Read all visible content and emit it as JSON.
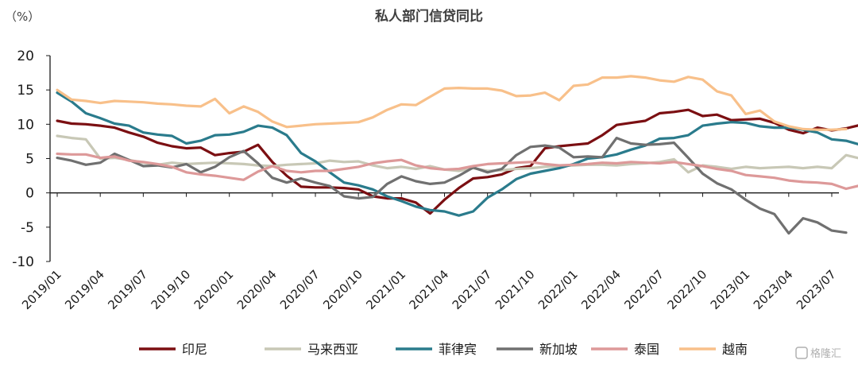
{
  "chart_data": {
    "type": "line",
    "title": "私人部门信贷同比",
    "unit_label": "（%）",
    "ylim": [
      -10,
      20
    ],
    "yticks": [
      20,
      15,
      10,
      5,
      0,
      -5,
      -10
    ],
    "x_start": "2019/01",
    "x_tick_labels": [
      "2019/01",
      "2019/04",
      "2019/07",
      "2019/10",
      "2020/01",
      "2020/04",
      "2020/07",
      "2020/10",
      "2021/01",
      "2021/04",
      "2021/07",
      "2021/10",
      "2022/01",
      "2022/04",
      "2022/07",
      "2022/10",
      "2023/01",
      "2023/04",
      "2023/07"
    ],
    "legend_position": "bottom",
    "grid": false,
    "series": [
      {
        "name": "印尼",
        "color": "#7b0f12",
        "values": [
          10.5,
          10.1,
          10.0,
          9.8,
          9.5,
          8.8,
          8.2,
          7.3,
          6.8,
          6.5,
          6.6,
          5.5,
          5.8,
          6.0,
          7.0,
          4.5,
          2.5,
          0.9,
          0.8,
          0.8,
          0.7,
          0.5,
          -0.5,
          -0.8,
          -0.8,
          -1.4,
          -3.0,
          -1.0,
          0.7,
          2.1,
          2.3,
          2.7,
          3.6,
          3.9,
          6.5,
          6.8,
          7.0,
          7.2,
          8.4,
          9.9,
          10.2,
          10.5,
          11.6,
          11.8,
          12.1,
          11.2,
          11.4,
          10.6,
          10.7,
          10.8,
          10.2,
          9.2,
          8.7,
          9.5,
          9.1,
          9.4,
          9.9
        ]
      },
      {
        "name": "马来西亚",
        "color": "#c8c8b6",
        "values": [
          8.3,
          8.0,
          7.8,
          5.0,
          5.1,
          4.8,
          4.4,
          4.1,
          4.4,
          4.2,
          4.3,
          4.4,
          4.3,
          4.2,
          4.0,
          3.9,
          4.1,
          4.2,
          4.3,
          4.7,
          4.5,
          4.6,
          4.0,
          3.6,
          3.8,
          3.5,
          3.9,
          3.4,
          3.2,
          3.6,
          3.2,
          3.3,
          3.5,
          3.6,
          3.8,
          3.9,
          4.0,
          4.1,
          4.1,
          4.0,
          4.2,
          4.3,
          4.5,
          4.9,
          3.0,
          4.0,
          3.8,
          3.5,
          3.8,
          3.6,
          3.7,
          3.8,
          3.6,
          3.8,
          3.6,
          5.5,
          5.0
        ]
      },
      {
        "name": "菲律宾",
        "color": "#2a7b8c",
        "values": [
          14.6,
          13.3,
          11.6,
          10.9,
          10.1,
          9.8,
          8.8,
          8.5,
          8.3,
          7.2,
          7.6,
          8.4,
          8.5,
          8.9,
          9.8,
          9.5,
          8.4,
          5.8,
          4.6,
          3.0,
          1.5,
          1.1,
          0.5,
          -0.5,
          -1.2,
          -2.0,
          -2.5,
          -2.7,
          -3.3,
          -2.7,
          -0.7,
          0.5,
          2.0,
          2.8,
          3.2,
          3.6,
          4.2,
          5.0,
          5.2,
          5.6,
          6.3,
          6.9,
          7.9,
          8.0,
          8.4,
          9.8,
          10.1,
          10.3,
          10.2,
          9.7,
          9.5,
          9.5,
          9.2,
          8.8,
          7.8,
          7.6,
          7.0
        ]
      },
      {
        "name": "新加坡",
        "color": "#707070",
        "values": [
          5.1,
          4.7,
          4.1,
          4.4,
          5.7,
          4.8,
          3.9,
          4.0,
          3.7,
          4.2,
          3.0,
          3.8,
          5.2,
          6.1,
          4.3,
          2.2,
          1.5,
          2.1,
          1.5,
          1.0,
          -0.5,
          -0.8,
          -0.6,
          1.3,
          2.4,
          1.7,
          1.3,
          1.5,
          2.5,
          3.7,
          3.0,
          3.5,
          5.5,
          6.7,
          6.9,
          6.6,
          5.2,
          5.3,
          5.2,
          8.0,
          7.2,
          7.0,
          7.1,
          7.3,
          5.1,
          2.8,
          1.4,
          0.5,
          -1.0,
          -2.3,
          -3.1,
          -5.9,
          -3.7,
          -4.3,
          -5.5,
          -5.8
        ]
      },
      {
        "name": "泰国",
        "color": "#dd9999",
        "values": [
          5.7,
          5.6,
          5.6,
          5.1,
          5.3,
          4.7,
          4.5,
          4.2,
          3.8,
          3.0,
          2.7,
          2.5,
          2.2,
          1.9,
          3.1,
          3.9,
          3.2,
          3.0,
          3.2,
          3.2,
          3.5,
          3.8,
          4.3,
          4.6,
          4.8,
          4.0,
          3.6,
          3.4,
          3.5,
          3.9,
          4.2,
          4.3,
          4.4,
          4.5,
          4.2,
          4.0,
          4.1,
          4.2,
          4.4,
          4.3,
          4.5,
          4.4,
          4.3,
          4.5,
          4.2,
          3.9,
          3.5,
          3.2,
          2.6,
          2.4,
          2.2,
          1.8,
          1.6,
          1.5,
          1.3,
          0.6,
          1.1
        ]
      },
      {
        "name": "越南",
        "color": "#f8c08a",
        "values": [
          15.0,
          13.6,
          13.4,
          13.1,
          13.4,
          13.3,
          13.2,
          13.0,
          12.9,
          12.7,
          12.6,
          13.7,
          11.6,
          12.6,
          11.8,
          10.4,
          9.6,
          9.8,
          10.0,
          10.1,
          10.2,
          10.3,
          11.0,
          12.1,
          12.9,
          12.8,
          14.0,
          15.2,
          15.3,
          15.2,
          15.2,
          14.9,
          14.1,
          14.2,
          14.6,
          13.5,
          15.6,
          15.8,
          16.8,
          16.8,
          17.0,
          16.8,
          16.4,
          16.2,
          16.9,
          16.5,
          14.8,
          14.2,
          11.5,
          12.0,
          10.4,
          9.7,
          9.3,
          9.2,
          9.2,
          9.3
        ]
      }
    ]
  },
  "watermark": {
    "text": "格隆汇",
    "icon": "gelonghui-logo-icon"
  }
}
